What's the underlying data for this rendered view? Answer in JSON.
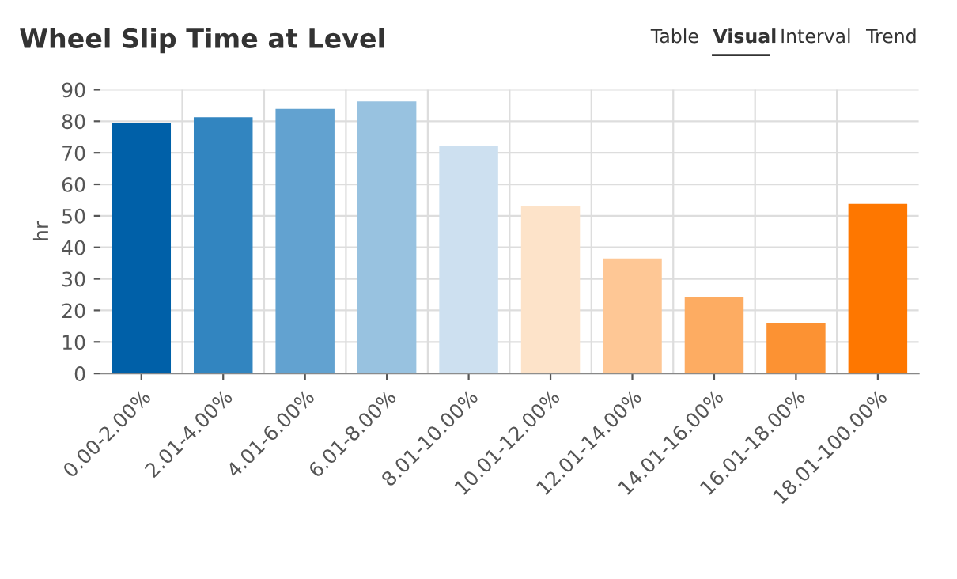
{
  "chart_data": {
    "type": "bar",
    "title": "Wheel Slip Time at Level",
    "ylabel": "hr",
    "categories": [
      "0.00-2.00%",
      "2.01-4.00%",
      "4.01-6.00%",
      "6.01-8.00%",
      "8.01-10.00%",
      "10.01-12.00%",
      "12.01-14.00%",
      "14.01-16.00%",
      "16.01-18.00%",
      "18.01-100.00%"
    ],
    "values": [
      79.5,
      81.3,
      83.9,
      86.3,
      72.2,
      53.0,
      36.5,
      24.3,
      16.1,
      53.8
    ],
    "colors": [
      "#0060a8",
      "#3285c0",
      "#62a2d0",
      "#98c2e0",
      "#cde0f0",
      "#fde3c9",
      "#fec795",
      "#fdac62",
      "#fc9233",
      "#fe7700"
    ],
    "ylim": [
      0,
      90
    ],
    "yticks": [
      0,
      10,
      20,
      30,
      40,
      50,
      60,
      70,
      80,
      90
    ],
    "grid": true,
    "annotations": [
      "Table",
      "Visual",
      "Interval",
      "Trend"
    ]
  }
}
